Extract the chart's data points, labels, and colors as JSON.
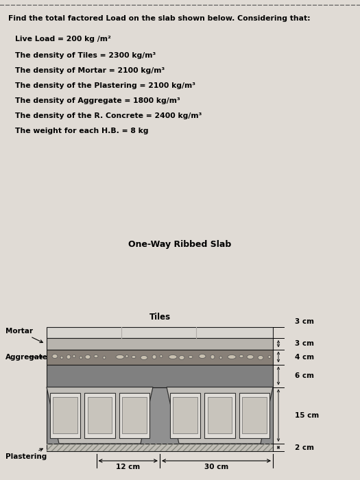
{
  "title_text": "Find the total factored Load on the slab shown below. Considering that:",
  "lines": [
    "Live Load = 200 kg /m²",
    "The density of Tiles = 2300 kg/m³",
    "The density of Mortar = 2100 kg/m³",
    "The density of the Plastering = 2100 kg/m³",
    "The density of Aggregate = 1800 kg/m³",
    "The density of the R. Concrete = 2400 kg/m³",
    "The weight for each H.B. = 8 kg"
  ],
  "diagram_title": "One-Way Ribbed Slab",
  "page_bg": "#e0dbd5",
  "tile_color": "#d8d5d0",
  "tile_divider_color": "#b0aca8",
  "mortar_color": "#b8b4ae",
  "aggregate_color": "#888078",
  "aggregate_dot_color": "#c8c0b0",
  "concrete_color": "#808080",
  "rib_color": "#c0bdb8",
  "rib_edge_color": "#303030",
  "hb_outer_color": "#e0ddd8",
  "hb_inner_color": "#c8c4bc",
  "plaster_color": "#c0bdb5",
  "outline_color": "#1a1a1a",
  "dim_color": "#1a1a1a"
}
